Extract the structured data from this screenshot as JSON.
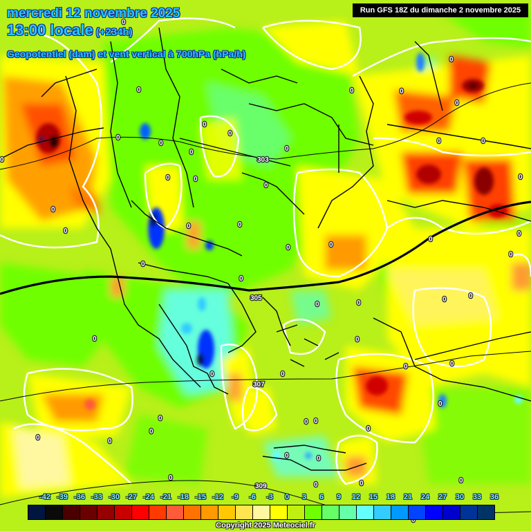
{
  "header": {
    "date": "mercredi 12 novembre 2025",
    "time": "13:00 locale",
    "lead": "(+234h)",
    "parameter": "Geopotentiel (dam) et vent vertical à 700hPa (hPa/h)",
    "run": "Run GFS 18Z du dimanche 2 novembre 2025"
  },
  "colorbar": {
    "ticks": [
      "-42",
      "-39",
      "-36",
      "-33",
      "-30",
      "-27",
      "-24",
      "-21",
      "-18",
      "-15",
      "-12",
      "-9",
      "-6",
      "-3",
      "0",
      "3",
      "6",
      "9",
      "12",
      "15",
      "18",
      "21",
      "24",
      "27",
      "30",
      "33",
      "36"
    ],
    "colors": [
      "#001540",
      "#0a0a0a",
      "#4a0000",
      "#6a0000",
      "#950000",
      "#c80000",
      "#ff0000",
      "#ff3a00",
      "#ff5a3a",
      "#ff7200",
      "#ff9a00",
      "#ffc800",
      "#ffe650",
      "#fff8a0",
      "#ffff00",
      "#c0f010",
      "#70ff00",
      "#66ff66",
      "#66ffaa",
      "#66ffff",
      "#33ccff",
      "#0099ff",
      "#0044ff",
      "#0000ff",
      "#0000cc",
      "#003399",
      "#003366"
    ]
  },
  "geopotential_labels": [
    "303",
    "305",
    "307",
    "309"
  ],
  "zero_label": "0",
  "copyright": "Copyright 2025 Meteociel.fr",
  "colors": {
    "background_green": "#b8f01a",
    "zero_contour": "#ffffff",
    "geopotential_line": "#000000",
    "title_text": "#22c8ff"
  }
}
